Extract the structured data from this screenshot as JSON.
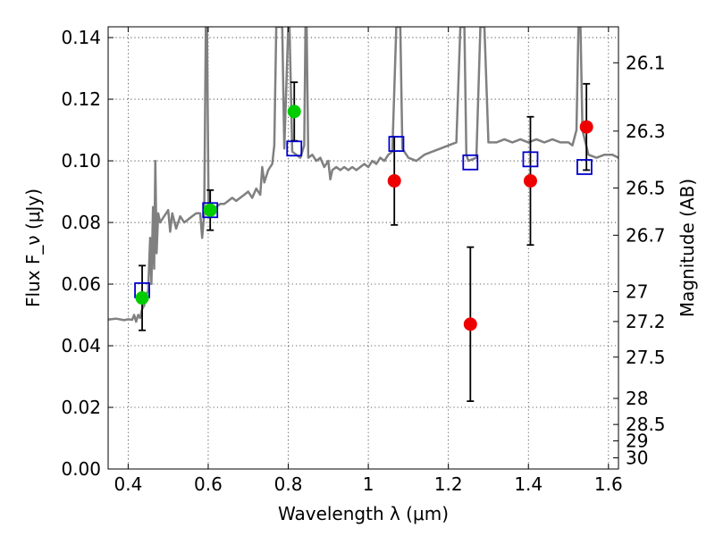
{
  "chart_data": {
    "type": "scatter",
    "xlabel": "Wavelength λ (μm)",
    "ylabel": "Flux F_ν (μJy)",
    "y2label": "Magnitude (AB)",
    "xlim": [
      0.35,
      1.625
    ],
    "ylim": [
      0.0,
      0.1435
    ],
    "grid": true,
    "x_ticks": [
      0.4,
      0.6,
      0.8,
      1.0,
      1.2,
      1.4,
      1.6
    ],
    "x_tick_labels": [
      "0.4",
      "0.6",
      "0.8",
      "1",
      "1.2",
      "1.4",
      "1.6"
    ],
    "y_ticks": [
      0.0,
      0.02,
      0.04,
      0.06,
      0.08,
      0.1,
      0.12,
      0.14
    ],
    "y_tick_labels": [
      "0.00",
      "0.02",
      "0.04",
      "0.06",
      "0.08",
      "0.10",
      "0.12",
      "0.14"
    ],
    "mag_ticks": [
      26.1,
      26.3,
      26.5,
      26.7,
      27,
      27.2,
      27.5,
      28,
      28.5,
      29,
      30
    ],
    "mag_tick_labels": [
      "26.1",
      "26.3",
      "26.5",
      "26.7",
      "27",
      "27.2",
      "27.5",
      "28",
      "28.5",
      "29",
      "30"
    ],
    "series": [
      {
        "kind": "line",
        "color": "#808080",
        "points": [
          [
            0.35,
            0.0485
          ],
          [
            0.37,
            0.0488
          ],
          [
            0.39,
            0.0483
          ],
          [
            0.4,
            0.0486
          ],
          [
            0.41,
            0.0484
          ],
          [
            0.415,
            0.05
          ],
          [
            0.42,
            0.0478
          ],
          [
            0.425,
            0.05
          ],
          [
            0.43,
            0.049
          ],
          [
            0.435,
            0.052
          ],
          [
            0.44,
            0.053
          ],
          [
            0.445,
            0.056
          ],
          [
            0.45,
            0.058
          ],
          [
            0.455,
            0.075
          ],
          [
            0.458,
            0.06
          ],
          [
            0.462,
            0.085
          ],
          [
            0.465,
            0.065
          ],
          [
            0.468,
            0.1
          ],
          [
            0.471,
            0.07
          ],
          [
            0.475,
            0.083
          ],
          [
            0.48,
            0.08
          ],
          [
            0.49,
            0.082
          ],
          [
            0.5,
            0.084
          ],
          [
            0.505,
            0.077
          ],
          [
            0.51,
            0.083
          ],
          [
            0.52,
            0.078
          ],
          [
            0.53,
            0.082
          ],
          [
            0.54,
            0.08
          ],
          [
            0.55,
            0.081
          ],
          [
            0.56,
            0.082
          ],
          [
            0.57,
            0.083
          ],
          [
            0.58,
            0.083
          ],
          [
            0.585,
            0.075
          ],
          [
            0.59,
            0.083
          ],
          [
            0.594,
            0.1435
          ],
          [
            0.597,
            0.1435
          ],
          [
            0.601,
            0.084
          ],
          [
            0.61,
            0.084
          ],
          [
            0.62,
            0.085
          ],
          [
            0.63,
            0.086
          ],
          [
            0.64,
            0.086
          ],
          [
            0.65,
            0.087
          ],
          [
            0.66,
            0.088
          ],
          [
            0.67,
            0.087
          ],
          [
            0.68,
            0.088
          ],
          [
            0.69,
            0.089
          ],
          [
            0.7,
            0.09
          ],
          [
            0.71,
            0.088
          ],
          [
            0.72,
            0.091
          ],
          [
            0.73,
            0.089
          ],
          [
            0.735,
            0.098
          ],
          [
            0.74,
            0.093
          ],
          [
            0.75,
            0.097
          ],
          [
            0.76,
            0.099
          ],
          [
            0.765,
            0.105
          ],
          [
            0.77,
            0.1435
          ],
          [
            0.78,
            0.1435
          ],
          [
            0.785,
            0.1435
          ],
          [
            0.79,
            0.104
          ],
          [
            0.8,
            0.1435
          ],
          [
            0.803,
            0.1435
          ],
          [
            0.81,
            0.103
          ],
          [
            0.82,
            0.102
          ],
          [
            0.83,
            0.101
          ],
          [
            0.84,
            0.105
          ],
          [
            0.843,
            0.1435
          ],
          [
            0.846,
            0.1435
          ],
          [
            0.85,
            0.101
          ],
          [
            0.86,
            0.102
          ],
          [
            0.87,
            0.1
          ],
          [
            0.88,
            0.101
          ],
          [
            0.89,
            0.098
          ],
          [
            0.9,
            0.1
          ],
          [
            0.905,
            0.094
          ],
          [
            0.91,
            0.097
          ],
          [
            0.92,
            0.098
          ],
          [
            0.93,
            0.097
          ],
          [
            0.94,
            0.098
          ],
          [
            0.95,
            0.097
          ],
          [
            0.96,
            0.098
          ],
          [
            0.97,
            0.097
          ],
          [
            0.98,
            0.098
          ],
          [
            0.99,
            0.099
          ],
          [
            1.0,
            0.098
          ],
          [
            1.01,
            0.1
          ],
          [
            1.02,
            0.099
          ],
          [
            1.03,
            0.101
          ],
          [
            1.04,
            0.1
          ],
          [
            1.05,
            0.102
          ],
          [
            1.06,
            0.103
          ],
          [
            1.07,
            0.1435
          ],
          [
            1.08,
            0.1435
          ],
          [
            1.085,
            0.104
          ],
          [
            1.09,
            0.103
          ],
          [
            1.1,
            0.101
          ],
          [
            1.12,
            0.1
          ],
          [
            1.14,
            0.102
          ],
          [
            1.16,
            0.103
          ],
          [
            1.18,
            0.104
          ],
          [
            1.2,
            0.105
          ],
          [
            1.22,
            0.106
          ],
          [
            1.23,
            0.1435
          ],
          [
            1.24,
            0.1435
          ],
          [
            1.245,
            0.102
          ],
          [
            1.25,
            0.1
          ],
          [
            1.27,
            0.101
          ],
          [
            1.28,
            0.1435
          ],
          [
            1.29,
            0.1435
          ],
          [
            1.3,
            0.106
          ],
          [
            1.32,
            0.106
          ],
          [
            1.34,
            0.107
          ],
          [
            1.36,
            0.106
          ],
          [
            1.38,
            0.107
          ],
          [
            1.4,
            0.106
          ],
          [
            1.42,
            0.107
          ],
          [
            1.44,
            0.106
          ],
          [
            1.46,
            0.107
          ],
          [
            1.48,
            0.106
          ],
          [
            1.5,
            0.106
          ],
          [
            1.51,
            0.105
          ],
          [
            1.52,
            0.11
          ],
          [
            1.525,
            0.1435
          ],
          [
            1.53,
            0.1435
          ],
          [
            1.535,
            0.11
          ],
          [
            1.55,
            0.102
          ],
          [
            1.57,
            0.101
          ],
          [
            1.59,
            0.102
          ],
          [
            1.61,
            0.102
          ],
          [
            1.625,
            0.101
          ]
        ]
      },
      {
        "kind": "markers",
        "marker": "open-square",
        "color": "#0000cc",
        "x": [
          0.435,
          0.605,
          0.815,
          1.07,
          1.255,
          1.405,
          1.54
        ],
        "y": [
          0.058,
          0.084,
          0.104,
          0.1055,
          0.0995,
          0.1005,
          0.098
        ]
      },
      {
        "kind": "markers",
        "marker": "filled-circle",
        "color": "#00cc00",
        "x": [
          0.435,
          0.605,
          0.815
        ],
        "y": [
          0.0555,
          0.084,
          0.116
        ],
        "yerr": [
          0.0105,
          0.0065,
          0.0095
        ]
      },
      {
        "kind": "markers",
        "marker": "filled-circle",
        "color": "#ee0000",
        "x": [
          1.065,
          1.255,
          1.405,
          1.545
        ],
        "y": [
          0.0935,
          0.047,
          0.0935,
          0.111
        ],
        "yerr": [
          0.0143,
          0.025,
          0.0208,
          0.014
        ]
      }
    ]
  }
}
